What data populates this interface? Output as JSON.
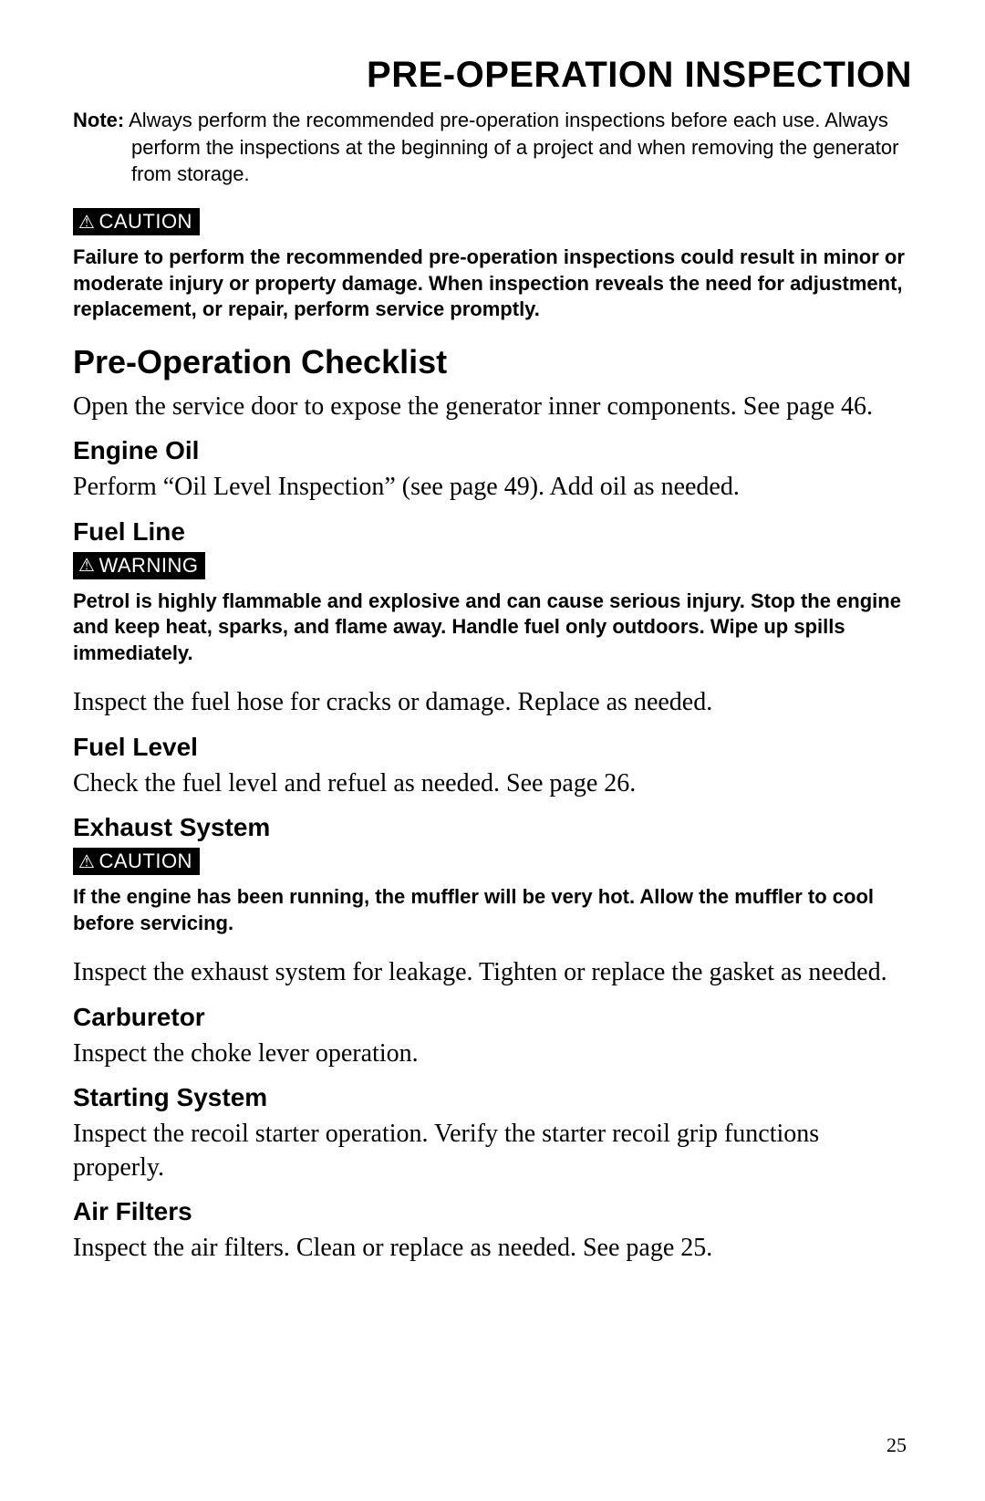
{
  "page": {
    "title": "PRE-OPERATION INSPECTION",
    "note": {
      "label": "Note:",
      "text": "Always perform the recommended pre-operation inspections before each use. Always perform the inspections at the beginning of a project and when removing the generator from storage."
    },
    "caution1": {
      "badge": "CAUTION",
      "text": "Failure to perform the recommended pre-operation inspections could result in minor or moderate injury or property damage. When inspection reveals the need for adjustment, replacement, or repair, perform service promptly."
    },
    "checklist": {
      "heading": "Pre-Operation Checklist",
      "intro": "Open the service door to expose the generator inner components. See page 46.",
      "sections": {
        "engine_oil": {
          "heading": "Engine Oil",
          "text": "Perform “Oil Level Inspection” (see page 49). Add oil as needed."
        },
        "fuel_line": {
          "heading": "Fuel Line",
          "warning_badge": "WARNING",
          "warning_text": "Petrol is highly flammable and explosive and can cause serious injury. Stop the engine and keep heat, sparks, and flame away. Handle fuel only outdoors. Wipe up spills immediately.",
          "text": "Inspect the fuel hose for cracks or damage. Replace as needed."
        },
        "fuel_level": {
          "heading": "Fuel Level",
          "text": "Check the fuel level and refuel as needed. See page 26."
        },
        "exhaust": {
          "heading": "Exhaust System",
          "caution_badge": "CAUTION",
          "caution_text": "If the engine has been running, the muffler will be very hot. Allow the muffler to cool before servicing.",
          "text": "Inspect the exhaust system for leakage. Tighten or replace the gasket as needed."
        },
        "carburetor": {
          "heading": "Carburetor",
          "text": "Inspect the choke lever operation."
        },
        "starting": {
          "heading": "Starting System",
          "text": "Inspect the recoil starter operation. Verify the starter recoil grip functions properly."
        },
        "air_filters": {
          "heading": "Air Filters",
          "text": "Inspect the air filters. Clean or replace as needed. See page 25."
        }
      }
    },
    "page_number": "25"
  }
}
